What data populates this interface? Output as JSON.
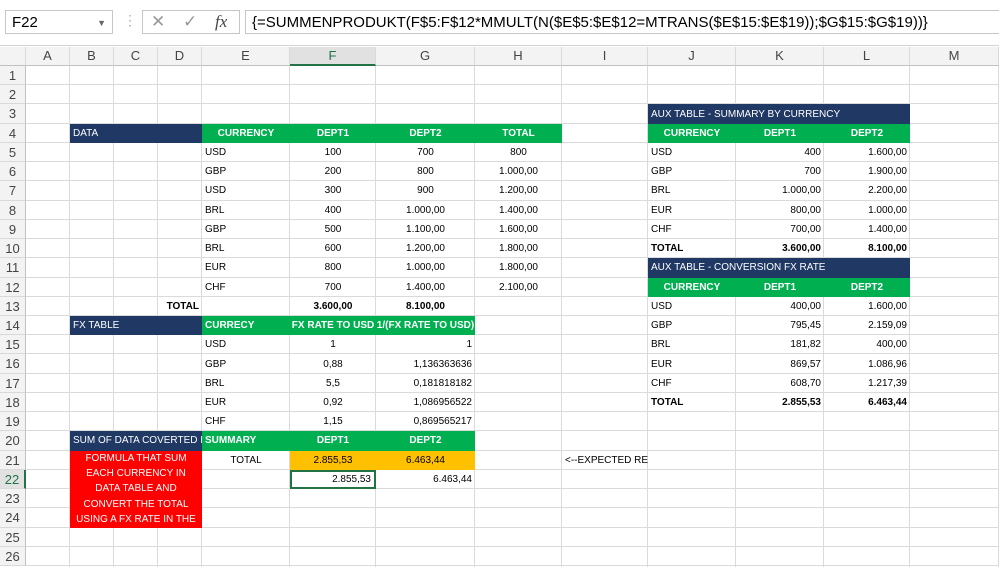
{
  "name_box": "F22",
  "formula": "{=SUMMENPRODUKT(F$5:F$12*MMULT(N($E$5:$E$12=MTRANS($E$15:$E$19));$G$15:$G$19))}",
  "columns": [
    "A",
    "B",
    "C",
    "D",
    "E",
    "F",
    "G",
    "H",
    "I",
    "J",
    "K",
    "L",
    "M"
  ],
  "rows": [
    "1",
    "2",
    "3",
    "4",
    "5",
    "6",
    "7",
    "8",
    "9",
    "10",
    "11",
    "12",
    "13",
    "14",
    "15",
    "16",
    "17",
    "18",
    "19",
    "20",
    "21",
    "22",
    "23",
    "24",
    "25",
    "26"
  ],
  "selected_cell": "F22",
  "colors": {
    "navy": "#1f3864",
    "green": "#00b050",
    "red": "#ff0000",
    "orange": "#ffc000",
    "selection": "#217346"
  },
  "cells": [
    [
      "B4:D4",
      "DATA",
      "navy l"
    ],
    [
      "E4",
      "CURRENCY",
      "green c"
    ],
    [
      "F4",
      "DEPT1",
      "green c"
    ],
    [
      "G4",
      "DEPT2",
      "green c"
    ],
    [
      "H4",
      "TOTAL",
      "green c"
    ],
    [
      "E5",
      "USD",
      "l"
    ],
    [
      "F5",
      "100",
      "c"
    ],
    [
      "G5",
      "700",
      "c"
    ],
    [
      "H5",
      "800",
      "c"
    ],
    [
      "E6",
      "GBP",
      "l"
    ],
    [
      "F6",
      "200",
      "c"
    ],
    [
      "G6",
      "800",
      "c"
    ],
    [
      "H6",
      "1.000,00",
      "c"
    ],
    [
      "E7",
      "USD",
      "l"
    ],
    [
      "F7",
      "300",
      "c"
    ],
    [
      "G7",
      "900",
      "c"
    ],
    [
      "H7",
      "1.200,00",
      "c"
    ],
    [
      "E8",
      "BRL",
      "l"
    ],
    [
      "F8",
      "400",
      "c"
    ],
    [
      "G8",
      "1.000,00",
      "c"
    ],
    [
      "H8",
      "1.400,00",
      "c"
    ],
    [
      "E9",
      "GBP",
      "l"
    ],
    [
      "F9",
      "500",
      "c"
    ],
    [
      "G9",
      "1.100,00",
      "c"
    ],
    [
      "H9",
      "1.600,00",
      "c"
    ],
    [
      "E10",
      "BRL",
      "l"
    ],
    [
      "F10",
      "600",
      "c"
    ],
    [
      "G10",
      "1.200,00",
      "c"
    ],
    [
      "H10",
      "1.800,00",
      "c"
    ],
    [
      "E11",
      "EUR",
      "l"
    ],
    [
      "F11",
      "800",
      "c"
    ],
    [
      "G11",
      "1.000,00",
      "c"
    ],
    [
      "H11",
      "1.800,00",
      "c"
    ],
    [
      "E12",
      "CHF",
      "l"
    ],
    [
      "F12",
      "700",
      "c"
    ],
    [
      "G12",
      "1.400,00",
      "c"
    ],
    [
      "H12",
      "2.100,00",
      "c"
    ],
    [
      "D13",
      "TOTAL",
      "bold r"
    ],
    [
      "F13",
      "3.600,00",
      "bold c"
    ],
    [
      "G13",
      "8.100,00",
      "bold c"
    ],
    [
      "B14:D14",
      "FX TABLE",
      "navy l"
    ],
    [
      "E14",
      "CURRECY",
      "green l"
    ],
    [
      "F14",
      "FX RATE TO USD",
      "green c"
    ],
    [
      "G14",
      "1/(FX RATE TO USD)",
      "green c"
    ],
    [
      "E15",
      "USD",
      "l"
    ],
    [
      "F15",
      "1",
      "c"
    ],
    [
      "G15",
      "1",
      "r"
    ],
    [
      "E16",
      "GBP",
      "l"
    ],
    [
      "F16",
      "0,88",
      "c"
    ],
    [
      "G16",
      "1,136363636",
      "r"
    ],
    [
      "E17",
      "BRL",
      "l"
    ],
    [
      "F17",
      "5,5",
      "c"
    ],
    [
      "G17",
      "0,181818182",
      "r"
    ],
    [
      "E18",
      "EUR",
      "l"
    ],
    [
      "F18",
      "0,92",
      "c"
    ],
    [
      "G18",
      "1,086956522",
      "r"
    ],
    [
      "E19",
      "CHF",
      "l"
    ],
    [
      "F19",
      "1,15",
      "c"
    ],
    [
      "G19",
      "0,869565217",
      "r"
    ],
    [
      "B20:D20",
      "SUM OF DATA COVERTED IN",
      "navy l"
    ],
    [
      "E20",
      "SUMMARY",
      "green l"
    ],
    [
      "F20",
      "DEPT1",
      "green c"
    ],
    [
      "G20",
      "DEPT2",
      "green c"
    ],
    [
      "B21:D24",
      "FORMULA THAT SUM EACH CURRENCY IN DATA TABLE AND CONVERT THE TOTAL USING A FX RATE IN THE FX TABLE THEN",
      "red"
    ],
    [
      "E21",
      "TOTAL",
      "c"
    ],
    [
      "F21",
      "2.855,53",
      "orange c"
    ],
    [
      "G21",
      "6.463,44",
      "orange c"
    ],
    [
      "F22",
      "2.855,53",
      "r"
    ],
    [
      "G22",
      "6.463,44",
      "r"
    ],
    [
      "I21",
      "<--EXPECTED RESULT WITH AUX TABLE",
      "l"
    ],
    [
      "J3:L3",
      "AUX TABLE - SUMMARY BY CURRENCY",
      "navy l"
    ],
    [
      "J4",
      "CURRENCY",
      "green c"
    ],
    [
      "K4",
      "DEPT1",
      "green c"
    ],
    [
      "L4",
      "DEPT2",
      "green c"
    ],
    [
      "J5",
      "USD",
      "l"
    ],
    [
      "K5",
      "400",
      "r"
    ],
    [
      "L5",
      "1.600,00",
      "r"
    ],
    [
      "J6",
      "GBP",
      "l"
    ],
    [
      "K6",
      "700",
      "r"
    ],
    [
      "L6",
      "1.900,00",
      "r"
    ],
    [
      "J7",
      "BRL",
      "l"
    ],
    [
      "K7",
      "1.000,00",
      "r"
    ],
    [
      "L7",
      "2.200,00",
      "r"
    ],
    [
      "J8",
      "EUR",
      "l"
    ],
    [
      "K8",
      "800,00",
      "r"
    ],
    [
      "L8",
      "1.000,00",
      "r"
    ],
    [
      "J9",
      "CHF",
      "l"
    ],
    [
      "K9",
      "700,00",
      "r"
    ],
    [
      "L9",
      "1.400,00",
      "r"
    ],
    [
      "J10",
      "TOTAL",
      "bold l"
    ],
    [
      "K10",
      "3.600,00",
      "bold r"
    ],
    [
      "L10",
      "8.100,00",
      "bold r"
    ],
    [
      "J11:L11",
      "AUX TABLE - CONVERSION FX RATE",
      "navy l"
    ],
    [
      "J12",
      "CURRENCY",
      "green c"
    ],
    [
      "K12",
      "DEPT1",
      "green c"
    ],
    [
      "L12",
      "DEPT2",
      "green c"
    ],
    [
      "J13",
      "USD",
      "l"
    ],
    [
      "K13",
      "400,00",
      "r"
    ],
    [
      "L13",
      "1.600,00",
      "r"
    ],
    [
      "J14",
      "GBP",
      "l"
    ],
    [
      "K14",
      "795,45",
      "r"
    ],
    [
      "L14",
      "2.159,09",
      "r"
    ],
    [
      "J15",
      "BRL",
      "l"
    ],
    [
      "K15",
      "181,82",
      "r"
    ],
    [
      "L15",
      "400,00",
      "r"
    ],
    [
      "J16",
      "EUR",
      "l"
    ],
    [
      "K16",
      "869,57",
      "r"
    ],
    [
      "L16",
      "1.086,96",
      "r"
    ],
    [
      "J17",
      "CHF",
      "l"
    ],
    [
      "K17",
      "608,70",
      "r"
    ],
    [
      "L17",
      "1.217,39",
      "r"
    ],
    [
      "J18",
      "TOTAL",
      "bold l"
    ],
    [
      "K18",
      "2.855,53",
      "bold r"
    ],
    [
      "L18",
      "6.463,44",
      "bold r"
    ]
  ]
}
